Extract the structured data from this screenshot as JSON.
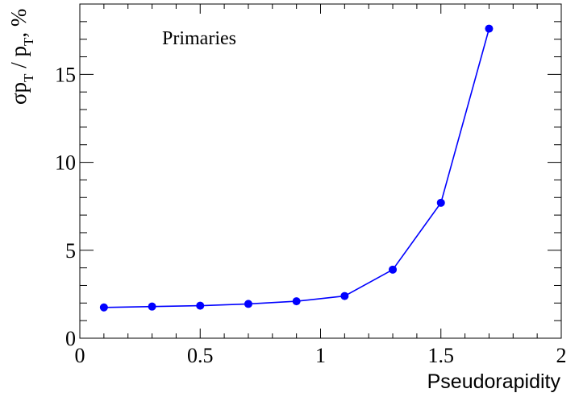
{
  "chart_data": {
    "type": "line",
    "title": "",
    "annotation": "Primaries",
    "xlabel": "Pseudorapidity",
    "ylabel": {
      "sigma": "σ",
      "p": "p",
      "sub": "T",
      "sep": " / ",
      "p2": "p",
      "sub2": "T",
      "tail": ", %"
    },
    "xlim": [
      0,
      2
    ],
    "ylim": [
      0,
      19
    ],
    "xticks": [
      "0",
      "0.5",
      "1",
      "1.5",
      "2"
    ],
    "yticks": [
      "0",
      "5",
      "10",
      "15"
    ],
    "grid": false,
    "series": [
      {
        "color": "#0000ff",
        "x": [
          0.1,
          0.3,
          0.5,
          0.7,
          0.9,
          1.1,
          1.3,
          1.5,
          1.7
        ],
        "y": [
          1.75,
          1.8,
          1.85,
          1.95,
          2.1,
          2.4,
          3.9,
          7.7,
          17.6
        ]
      }
    ]
  }
}
